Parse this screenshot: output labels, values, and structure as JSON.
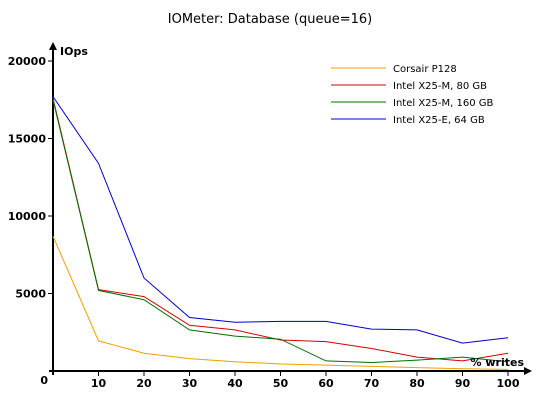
{
  "chart_data": {
    "type": "line",
    "title": "IOMeter: Database (queue=16)",
    "xlabel": "% writes",
    "ylabel": "IOps",
    "x": [
      0,
      10,
      20,
      30,
      40,
      50,
      60,
      70,
      80,
      90,
      100
    ],
    "xlim": [
      0,
      100
    ],
    "ylim": [
      0,
      20000
    ],
    "x_ticks": [
      "0",
      "10",
      "20",
      "30",
      "40",
      "50",
      "60",
      "70",
      "80",
      "90",
      "100"
    ],
    "y_ticks": [
      "0",
      "5000",
      "10000",
      "15000",
      "20000"
    ],
    "x_tick_values": [
      0,
      10,
      20,
      30,
      40,
      50,
      60,
      70,
      80,
      90,
      100
    ],
    "y_tick_values": [
      0,
      5000,
      10000,
      15000,
      20000
    ],
    "grid": false,
    "legend_position": "top-right",
    "series": [
      {
        "name": "Corsair P128",
        "color": "#f0a000",
        "values": [
          8700,
          1950,
          1150,
          800,
          600,
          450,
          380,
          300,
          220,
          150,
          100
        ]
      },
      {
        "name": "Intel X25-M, 80 GB",
        "color": "#d40000",
        "values": [
          17600,
          5250,
          4800,
          2950,
          2650,
          2000,
          1900,
          1450,
          900,
          650,
          1150
        ]
      },
      {
        "name": "Intel X25-M, 160 GB",
        "color": "#007000",
        "values": [
          17500,
          5200,
          4600,
          2650,
          2250,
          2050,
          650,
          550,
          700,
          900,
          600
        ]
      },
      {
        "name": "Intel X25-E, 64 GB",
        "color": "#0000cc",
        "values": [
          17700,
          13400,
          6000,
          3450,
          3150,
          3200,
          3200,
          2700,
          2650,
          1800,
          2150
        ]
      }
    ]
  }
}
